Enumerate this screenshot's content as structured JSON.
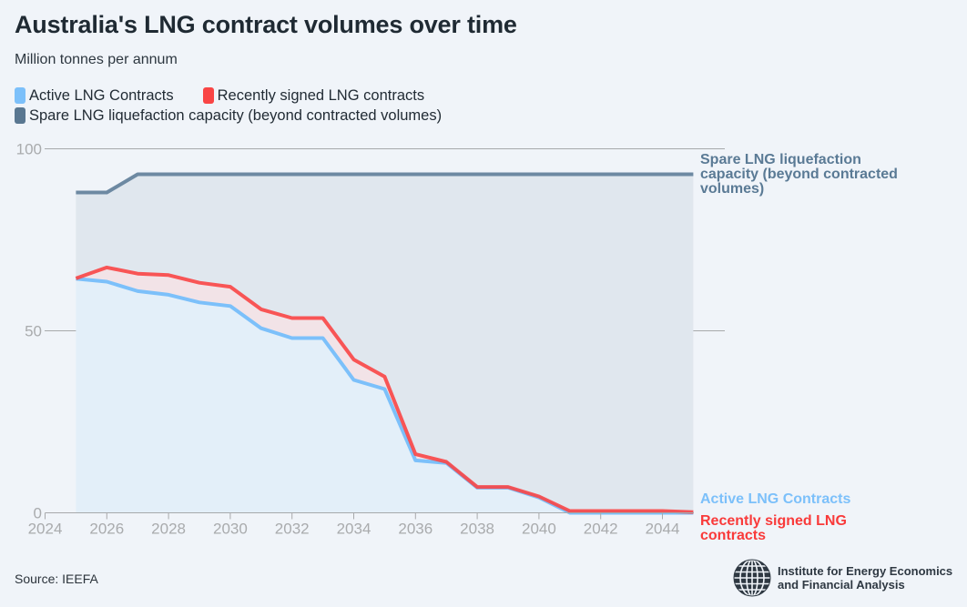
{
  "title": "Australia's LNG contract volumes over time",
  "subtitle": "Million tonnes per annum",
  "legend": [
    {
      "label": "Active LNG Contracts",
      "color": "#7cc0fa"
    },
    {
      "label": "Recently signed LNG contracts",
      "color": "#f94545"
    },
    {
      "label": "Spare LNG liquefaction capacity (beyond contracted volumes)",
      "color": "#597791"
    }
  ],
  "source": "Source: IEEFA",
  "logo": {
    "line1": "Institute for Energy Economics",
    "line2": "and Financial Analysis",
    "icon": "globe-icon"
  },
  "chart_data": {
    "type": "area",
    "title": "Australia's LNG contract volumes over time",
    "ylabel": "Million tonnes per annum",
    "xlabel": "",
    "xlim": [
      2024,
      2045
    ],
    "ylim": [
      0,
      100
    ],
    "x_ticks": [
      "2024",
      "2026",
      "2028",
      "2030",
      "2032",
      "2034",
      "2036",
      "2038",
      "2040",
      "2042",
      "2044"
    ],
    "y_ticks": [
      "0",
      "50",
      "100"
    ],
    "grid": true,
    "x": [
      2025,
      2026,
      2027,
      2028,
      2029,
      2030,
      2031,
      2032,
      2033,
      2034,
      2035,
      2036,
      2037,
      2038,
      2039,
      2040,
      2041,
      2042,
      2043,
      2044,
      2045
    ],
    "series": [
      {
        "name": "Active LNG Contracts",
        "color": "#7cc0fa",
        "fill": "#e3eff9",
        "end_label": "Active LNG Contracts",
        "values": [
          64.3,
          63.5,
          60.9,
          59.9,
          57.8,
          56.8,
          50.7,
          48.0,
          48.0,
          36.5,
          34.0,
          14.4,
          13.7,
          6.9,
          6.9,
          4.2,
          0,
          0,
          0,
          0,
          0
        ]
      },
      {
        "name": "Recently signed LNG contracts",
        "color": "#f94545",
        "fill": "#f2e3e7",
        "end_label": "Recently signed LNG contracts",
        "values": [
          64.4,
          67.4,
          65.7,
          65.3,
          63.2,
          62.1,
          55.9,
          53.5,
          53.5,
          42.1,
          37.4,
          16.1,
          14.0,
          7.1,
          7.1,
          4.5,
          0.5,
          0.5,
          0.5,
          0.5,
          0.2
        ]
      },
      {
        "name": "Spare LNG liquefaction capacity (beyond contracted volumes)",
        "color": "#6d89a2",
        "fill": "#e0e7ee",
        "end_label": "Spare LNG liquefaction capacity (beyond contracted volumes)",
        "end_label_lines": [
          "Spare LNG liquefaction",
          "capacity (beyond contracted",
          "volumes)"
        ],
        "values": [
          88,
          88,
          93,
          93,
          93,
          93,
          93,
          93,
          93,
          93,
          93,
          93,
          93,
          93,
          93,
          93,
          93,
          93,
          93,
          93,
          93
        ]
      }
    ],
    "end_labels": {
      "active": "Active LNG Contracts",
      "recent_lines": [
        "Recently signed LNG",
        "contracts"
      ],
      "spare_lines": [
        "Spare LNG liquefaction",
        "capacity (beyond contracted",
        "volumes)"
      ]
    }
  }
}
